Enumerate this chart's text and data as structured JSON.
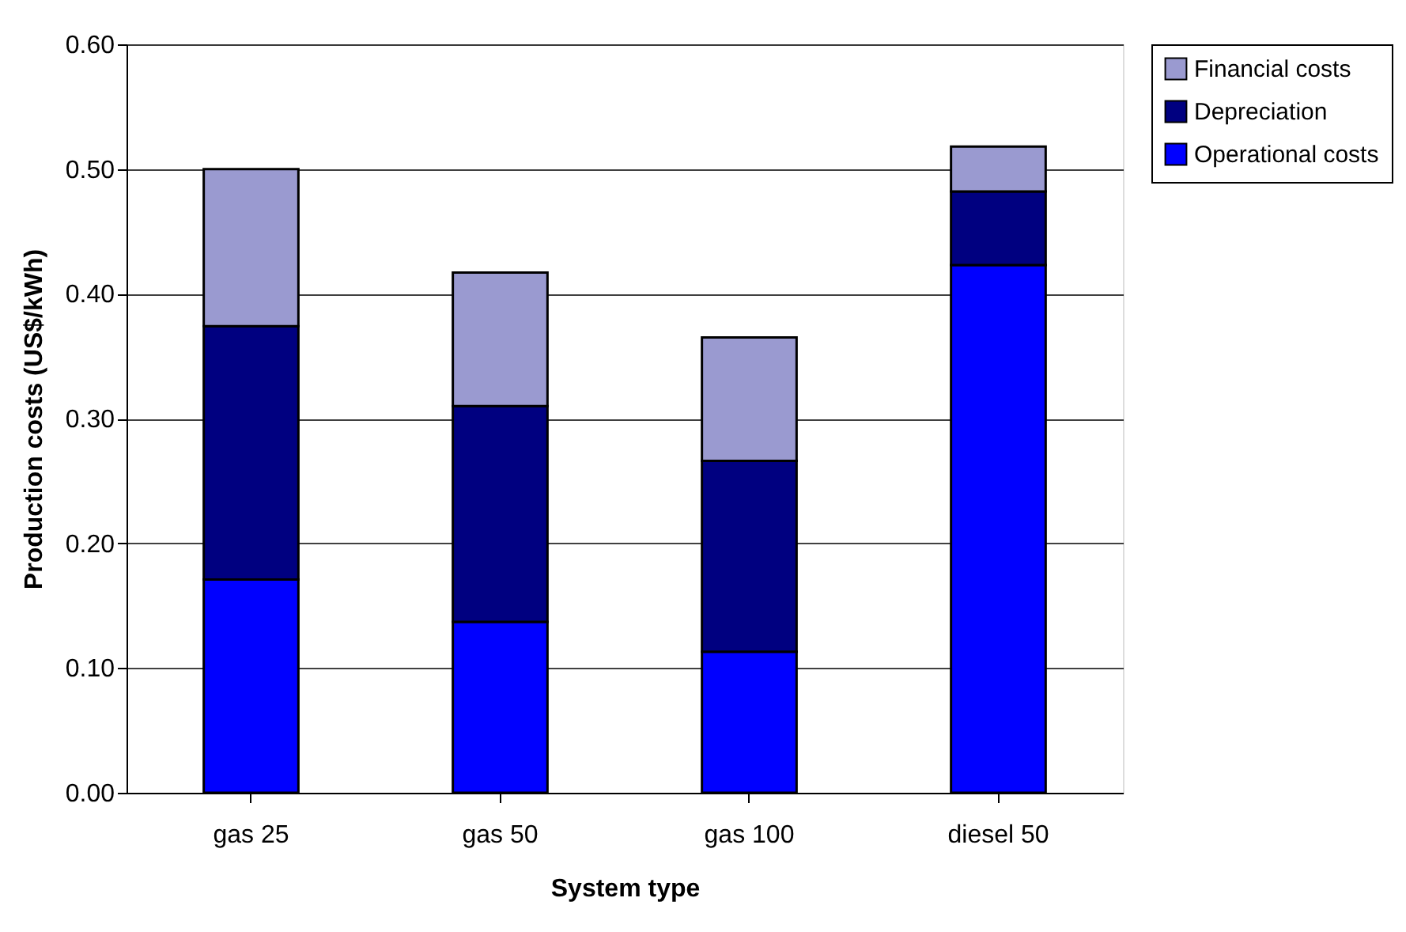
{
  "chart_data": {
    "type": "bar",
    "stacked": true,
    "xlabel": "System type",
    "ylabel": "Production costs (US$/kWh)",
    "categories": [
      "gas 25",
      "gas 50",
      "gas 100",
      "diesel 50"
    ],
    "series": [
      {
        "name": "Operational costs",
        "color": "#0000ff",
        "values": [
          0.171,
          0.137,
          0.113,
          0.423
        ]
      },
      {
        "name": "Depreciation",
        "color": "#000080",
        "values": [
          0.203,
          0.173,
          0.153,
          0.059
        ]
      },
      {
        "name": "Financial costs",
        "color": "#9a9ad0",
        "values": [
          0.126,
          0.107,
          0.099,
          0.036
        ]
      }
    ],
    "ylim": [
      0,
      0.6
    ],
    "yticks": [
      {
        "value": 0,
        "label": "0.00"
      },
      {
        "value": 0.1,
        "label": "0.10"
      },
      {
        "value": 0.2,
        "label": "0.20"
      },
      {
        "value": 0.3,
        "label": "0.30"
      },
      {
        "value": 0.4,
        "label": "0.40"
      },
      {
        "value": 0.5,
        "label": "0.50"
      },
      {
        "value": 0.6,
        "label": "0.60"
      }
    ],
    "grid": "y",
    "legend": "right"
  }
}
